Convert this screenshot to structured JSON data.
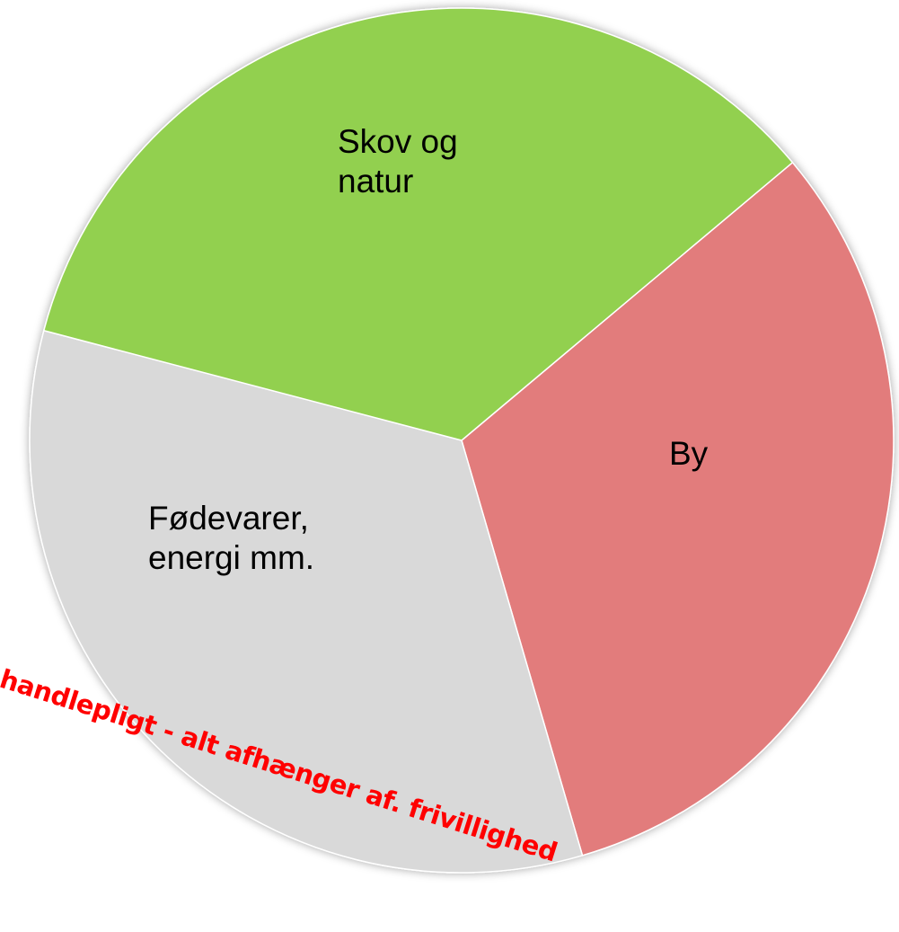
{
  "chart_data": {
    "type": "pie",
    "categories": [
      "By",
      "Fødevarer, energi mm.",
      "Skov og natur"
    ],
    "values": [
      31.6,
      33.6,
      34.8
    ],
    "colors": [
      "#e27c7c",
      "#d9d9d9",
      "#92d050"
    ],
    "start_angle": 50,
    "annotation": "handlepligt - alt afhænger af. frivillighed"
  }
}
